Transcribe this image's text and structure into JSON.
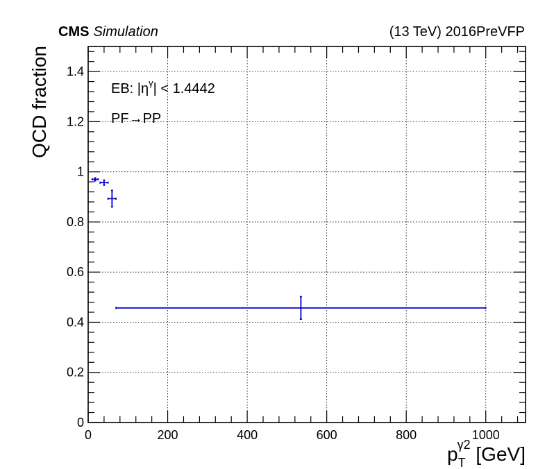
{
  "chart_data": {
    "type": "scatter",
    "experiment_label": "CMS",
    "experiment_sublabel": "Simulation",
    "energy_label": "(13 TeV) 2016PreVFP",
    "annotation": {
      "region_prefix": "EB: |η",
      "region_sup": "γ",
      "region_suffix": "| < 1.4442",
      "transition_left": "PF",
      "transition_arrow": "→",
      "transition_right": "PP"
    },
    "ylabel": "QCD fraction",
    "xlabel": {
      "main": "p",
      "sub": "T",
      "sup": "γ2",
      "unit": " [GeV]"
    },
    "xlim": [
      0,
      1100
    ],
    "ylim": [
      0,
      1.5
    ],
    "x_ticks": [
      0,
      200,
      400,
      600,
      800,
      1000
    ],
    "x_tick_labels": [
      "0",
      "200",
      "400",
      "600",
      "800",
      "1000"
    ],
    "y_ticks": [
      0,
      0.2,
      0.4,
      0.6,
      0.8,
      1.0,
      1.2,
      1.4
    ],
    "y_tick_labels": [
      "0",
      "0.2",
      "0.4",
      "0.6",
      "0.8",
      "1",
      "1.2",
      "1.4"
    ],
    "grid": true,
    "series": [
      {
        "color": "#0000cc",
        "points": [
          {
            "x": 17.5,
            "x_low": 10,
            "x_high": 25,
            "y": 0.97,
            "y_err": 0.006
          },
          {
            "x": 40,
            "x_low": 30,
            "x_high": 50,
            "y": 0.957,
            "y_err": 0.01
          },
          {
            "x": 60,
            "x_low": 50,
            "x_high": 70,
            "y": 0.893,
            "y_err": 0.033
          },
          {
            "x": 535,
            "x_low": 70,
            "x_high": 1000,
            "y": 0.457,
            "y_err": 0.045
          }
        ]
      }
    ]
  }
}
